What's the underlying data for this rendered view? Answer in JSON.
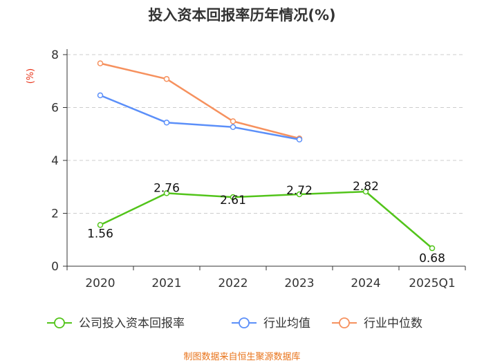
{
  "chart_data": {
    "type": "line",
    "title": "投入资本回报率历年情况(%)",
    "ylabel": "(%)",
    "xlabel": "",
    "categories": [
      "2020",
      "2021",
      "2022",
      "2023",
      "2024",
      "2025Q1"
    ],
    "ylim": [
      0,
      8
    ],
    "yticks": [
      0,
      2,
      4,
      6,
      8
    ],
    "series": [
      {
        "name": "公司投入资本回报率",
        "color": "#52c41a",
        "values": [
          1.56,
          2.76,
          2.61,
          2.72,
          2.82,
          0.68
        ],
        "labels": [
          "1.56",
          "2.76",
          "2.61",
          "2.72",
          "2.82",
          "0.68"
        ]
      },
      {
        "name": "行业均值",
        "color": "#5b8ff9",
        "values": [
          6.46,
          5.43,
          5.26,
          4.79,
          null,
          null
        ]
      },
      {
        "name": "行业中位数",
        "color": "#f6915e",
        "values": [
          7.67,
          7.08,
          5.48,
          4.83,
          null,
          null
        ]
      }
    ],
    "grid": true,
    "legend": "bottom"
  },
  "footer": "制图数据来自恒生聚源数据库",
  "colors": {
    "ylabel": "#e8341a",
    "axis": "#333333",
    "grid": "#cccccc"
  }
}
